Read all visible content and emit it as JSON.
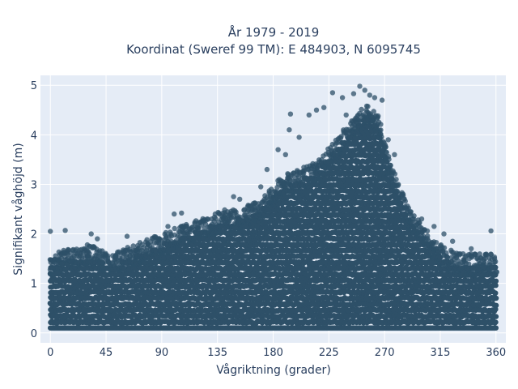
{
  "chart_data": {
    "type": "scatter",
    "title_lines": [
      "År 1979 - 2019",
      "Koordinat (Sweref 99 TM): E 484903, N 6095745"
    ],
    "xlabel": "Vågriktning (grader)",
    "ylabel": "Signifikant våghöjd (m)",
    "xlim": [
      -8,
      368
    ],
    "ylim": [
      -0.2,
      5.2
    ],
    "x_ticks": [
      0,
      45,
      90,
      135,
      180,
      225,
      270,
      315,
      360
    ],
    "y_ticks": [
      0,
      1,
      2,
      3,
      4,
      5
    ],
    "grid": true,
    "marker_color": "#2e5068",
    "background": "#e5ecf6",
    "envelope": {
      "x": [
        0,
        10,
        20,
        30,
        40,
        50,
        60,
        70,
        80,
        90,
        100,
        110,
        120,
        130,
        140,
        150,
        160,
        170,
        180,
        190,
        200,
        210,
        220,
        230,
        240,
        250,
        255,
        260,
        265,
        270,
        280,
        290,
        300,
        310,
        320,
        330,
        340,
        350,
        360
      ],
      "upper": [
        1.5,
        1.6,
        1.6,
        1.7,
        1.6,
        1.5,
        1.6,
        1.7,
        1.8,
        1.9,
        2.0,
        2.1,
        2.2,
        2.3,
        2.4,
        2.4,
        2.5,
        2.6,
        2.9,
        3.1,
        3.2,
        3.3,
        3.5,
        3.8,
        4.1,
        4.4,
        4.5,
        4.5,
        4.3,
        3.8,
        3.0,
        2.4,
        2.1,
        1.8,
        1.6,
        1.5,
        1.5,
        1.5,
        1.5
      ],
      "lower": 0.1
    },
    "outliers": [
      {
        "x": 0,
        "y": 2.05
      },
      {
        "x": 12,
        "y": 2.07
      },
      {
        "x": 33,
        "y": 2.0
      },
      {
        "x": 38,
        "y": 1.9
      },
      {
        "x": 62,
        "y": 1.95
      },
      {
        "x": 95,
        "y": 2.15
      },
      {
        "x": 100,
        "y": 2.4
      },
      {
        "x": 106,
        "y": 2.42
      },
      {
        "x": 148,
        "y": 2.75
      },
      {
        "x": 153,
        "y": 2.7
      },
      {
        "x": 170,
        "y": 2.95
      },
      {
        "x": 175,
        "y": 3.3
      },
      {
        "x": 184,
        "y": 3.7
      },
      {
        "x": 190,
        "y": 3.6
      },
      {
        "x": 193,
        "y": 4.1
      },
      {
        "x": 194,
        "y": 4.42
      },
      {
        "x": 201,
        "y": 3.95
      },
      {
        "x": 209,
        "y": 4.4
      },
      {
        "x": 215,
        "y": 4.5
      },
      {
        "x": 221,
        "y": 4.55
      },
      {
        "x": 228,
        "y": 4.85
      },
      {
        "x": 236,
        "y": 4.75
      },
      {
        "x": 239,
        "y": 4.4
      },
      {
        "x": 245,
        "y": 4.83
      },
      {
        "x": 250,
        "y": 4.98
      },
      {
        "x": 254,
        "y": 4.9
      },
      {
        "x": 258,
        "y": 4.8
      },
      {
        "x": 262,
        "y": 4.75
      },
      {
        "x": 268,
        "y": 4.7
      },
      {
        "x": 273,
        "y": 3.9
      },
      {
        "x": 278,
        "y": 3.6
      },
      {
        "x": 285,
        "y": 2.8
      },
      {
        "x": 300,
        "y": 2.3
      },
      {
        "x": 310,
        "y": 2.15
      },
      {
        "x": 318,
        "y": 2.0
      },
      {
        "x": 325,
        "y": 1.85
      },
      {
        "x": 340,
        "y": 1.7
      },
      {
        "x": 356,
        "y": 2.06
      }
    ]
  }
}
